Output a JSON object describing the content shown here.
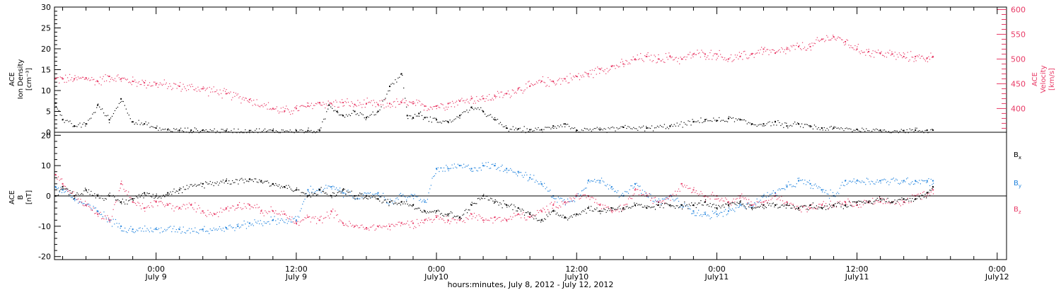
{
  "colors": {
    "black": "#000000",
    "pink": "#e83a66",
    "blue": "#1f82dd",
    "axis": "#000000"
  },
  "x_ticks": [
    {
      "time": "0:00",
      "date": "July 9",
      "hour": 24
    },
    {
      "time": "12:00",
      "date": "July 9",
      "hour": 36
    },
    {
      "time": "0:00",
      "date": "July10",
      "hour": 48
    },
    {
      "time": "12:00",
      "date": "July10",
      "hour": 60
    },
    {
      "time": "0:00",
      "date": "July11",
      "hour": 72
    },
    {
      "time": "12:00",
      "date": "July11",
      "hour": 84
    },
    {
      "time": "0:00",
      "date": "July12",
      "hour": 96
    }
  ],
  "x_caption": "hours:minutes, July  8, 2012 - July 12, 2012",
  "chart_data": [
    {
      "type": "scatter",
      "xlim": [
        15.3,
        96.8
      ],
      "ylabel_lines": [
        "ACE",
        "Ion Density",
        "[cm⁻³]"
      ],
      "ylim": [
        0,
        30
      ],
      "yticks": [
        0,
        5,
        10,
        15,
        20,
        25,
        30
      ],
      "y2label_lines": [
        "ACE",
        "Velocity",
        "[km/s]"
      ],
      "y2lim": [
        352,
        605
      ],
      "y2ticks": [
        400,
        450,
        500,
        550,
        600
      ],
      "series": [
        {
          "color": "black",
          "axis": "left",
          "x": [
            15.4,
            16,
            17,
            18,
            19,
            20,
            21,
            22,
            23,
            24,
            25,
            26,
            27,
            28,
            30,
            32,
            34,
            36,
            37,
            38,
            38.8,
            39.5,
            40,
            41,
            42,
            43,
            44,
            45,
            45.5,
            46,
            46.5,
            47,
            48,
            49,
            50,
            51,
            52,
            53,
            54,
            55,
            56,
            57,
            58,
            59,
            60,
            62,
            64,
            66,
            68,
            70,
            71,
            72,
            73,
            74,
            75,
            76,
            77,
            78,
            79,
            80,
            81,
            82,
            84,
            86,
            88,
            89,
            90,
            90.5
          ],
          "y": [
            7,
            3,
            1.5,
            2,
            6.5,
            3,
            8,
            2.5,
            2,
            1,
            0.6,
            0.5,
            0.5,
            0.5,
            0.4,
            0.4,
            0.4,
            0.4,
            0.4,
            0.4,
            6.5,
            5,
            4,
            5,
            3.5,
            5,
            11,
            14,
            4,
            3.5,
            4.5,
            3.5,
            3,
            2.5,
            4,
            6,
            5,
            3,
            1,
            0.8,
            0.6,
            0.6,
            1.5,
            2,
            0.5,
            0.6,
            1.2,
            1,
            1.5,
            2.5,
            3,
            2.8,
            3.3,
            3,
            2,
            2,
            2.5,
            1.5,
            2,
            1.5,
            1,
            1,
            0.7,
            0.5,
            0.4,
            0.5,
            0.5,
            0.5
          ]
        },
        {
          "color": "pink",
          "axis": "right",
          "x": [
            15.4,
            16,
            17,
            18,
            19,
            20,
            21,
            22,
            23,
            24,
            26,
            28,
            30,
            32,
            34,
            35,
            36,
            37,
            38,
            39,
            40,
            41,
            42,
            43,
            44,
            45,
            46,
            47,
            48,
            49,
            50,
            51,
            52,
            53,
            54,
            55,
            56,
            57,
            58,
            59,
            60,
            61,
            62,
            63,
            64,
            65,
            66,
            67,
            68,
            69,
            70,
            71,
            72,
            73,
            74,
            75,
            76,
            77,
            78,
            79,
            80,
            81,
            82,
            83,
            84,
            85,
            86,
            87,
            88,
            89,
            90,
            90.5
          ],
          "y": [
            460,
            460,
            460,
            462,
            455,
            465,
            460,
            455,
            452,
            450,
            445,
            440,
            430,
            418,
            400,
            395,
            400,
            405,
            412,
            410,
            412,
            408,
            410,
            408,
            410,
            412,
            410,
            405,
            405,
            410,
            415,
            420,
            420,
            425,
            430,
            440,
            445,
            455,
            455,
            460,
            465,
            470,
            480,
            485,
            490,
            500,
            505,
            500,
            505,
            500,
            510,
            510,
            510,
            500,
            505,
            510,
            520,
            512,
            520,
            525,
            525,
            540,
            545,
            535,
            520,
            515,
            512,
            510,
            505,
            505,
            502,
            505
          ]
        }
      ]
    },
    {
      "type": "scatter",
      "xlim": [
        15.3,
        96.8
      ],
      "ylabel_lines": [
        "ACE",
        "B",
        "[nT]"
      ],
      "ylim": [
        -21,
        21
      ],
      "yticks": [
        -20,
        -10,
        0,
        10,
        20
      ],
      "zero_line": true,
      "legend": {
        "placement": "right",
        "entries": [
          {
            "base": "B",
            "sub": "x",
            "color": "black"
          },
          {
            "base": "B",
            "sub": "y",
            "color": "blue"
          },
          {
            "base": "B",
            "sub": "z",
            "color": "pink"
          }
        ]
      },
      "series": [
        {
          "color": "black",
          "x": [
            15.4,
            16,
            17,
            18,
            19,
            20,
            21,
            22,
            23,
            24,
            25,
            26,
            28,
            30,
            32,
            33,
            34,
            35,
            36,
            37,
            38,
            39,
            40,
            41,
            42,
            43,
            44,
            45,
            46,
            47,
            48,
            49,
            50,
            51,
            52,
            53,
            54,
            55,
            56,
            57,
            58,
            59,
            60,
            61,
            62,
            63,
            64,
            65,
            66,
            67,
            68,
            69,
            70,
            71,
            72,
            73,
            74,
            75,
            76,
            77,
            78,
            79,
            80,
            81,
            82,
            83,
            84,
            85,
            86,
            87,
            88,
            89,
            90,
            90.5
          ],
          "y": [
            0,
            3,
            0,
            2,
            0,
            0,
            -2,
            -1,
            1,
            0,
            1,
            2,
            4,
            5,
            5.5,
            5,
            4,
            3,
            2,
            0,
            2,
            0,
            2,
            0,
            0,
            -1,
            -2,
            -2,
            -3,
            -5,
            -5,
            -6,
            -7,
            -3,
            0,
            -2,
            -3,
            -4,
            -6,
            -8,
            -5,
            -7,
            -6,
            -4,
            -5,
            -4,
            -4,
            -3,
            -4,
            -3,
            -3,
            -3,
            -3,
            -2,
            -4,
            -3,
            -2,
            -4,
            -3,
            -3,
            -3,
            -4,
            -3,
            -4,
            -3,
            -3,
            -2,
            -2,
            -1,
            -2,
            -1,
            -1,
            1,
            3
          ]
        },
        {
          "color": "blue",
          "x": [
            15.4,
            16,
            17,
            18,
            19,
            20,
            21,
            22,
            24,
            26,
            28,
            30,
            31,
            32,
            34,
            36,
            37,
            38,
            39,
            40,
            41,
            42,
            43,
            44,
            45,
            46,
            47,
            48,
            49,
            50,
            51,
            52,
            53,
            54,
            55,
            56,
            57,
            58,
            59,
            60,
            61,
            62,
            63,
            64,
            65,
            66,
            67,
            68,
            69,
            70,
            71,
            72,
            73,
            74,
            75,
            76,
            77,
            78,
            79,
            80,
            81,
            82,
            83,
            84,
            86,
            88,
            89,
            90,
            90.5
          ],
          "y": [
            3,
            2,
            -1,
            -3,
            -5,
            -8,
            -10,
            -11,
            -11,
            -11,
            -11,
            -10.5,
            -10,
            -9,
            -8,
            -8,
            2,
            2,
            3,
            1,
            0,
            0,
            1,
            -2,
            0,
            0,
            -2,
            9,
            9,
            10,
            9,
            10,
            10,
            9,
            8,
            6,
            4,
            0,
            -2,
            0,
            5,
            5,
            3,
            0,
            4,
            0,
            -2,
            0,
            -3,
            -5,
            -6,
            -6,
            -5,
            -3,
            -3,
            0,
            1,
            3,
            5,
            4,
            2,
            0,
            5,
            5,
            5,
            5,
            5,
            5,
            5
          ]
        },
        {
          "color": "pink",
          "x": [
            15.4,
            16,
            17,
            18,
            19,
            20,
            21,
            22,
            23,
            24,
            25,
            26,
            27,
            28,
            29,
            30,
            31,
            32,
            33,
            34,
            35,
            36,
            37,
            38,
            39,
            40,
            41,
            42,
            43,
            44,
            45,
            46,
            47,
            48,
            49,
            50,
            51,
            52,
            53,
            54,
            55,
            56,
            57,
            58,
            59,
            60,
            61,
            62,
            63,
            64,
            65,
            66,
            67,
            68,
            69,
            70,
            71,
            72,
            73,
            74,
            75,
            76,
            77,
            78,
            79,
            80,
            81,
            82,
            83,
            84,
            85,
            86,
            87,
            88,
            89,
            90,
            90.5
          ],
          "y": [
            7,
            4,
            0,
            -3,
            -6,
            -8,
            4,
            -2,
            -4,
            -2,
            -3,
            -4,
            -3,
            -5,
            -6,
            -4,
            -3,
            -3,
            -5,
            -5,
            -6,
            -9,
            -7,
            -8,
            -5,
            -9,
            -10,
            -10.5,
            -10,
            -10,
            -9,
            -9,
            -8,
            -7,
            -8,
            -8,
            -6,
            -8,
            -7,
            -8,
            -6,
            -7,
            -5,
            -3,
            -2,
            0,
            0,
            -3,
            -5,
            -4,
            2,
            0,
            -2,
            0,
            4,
            2,
            0,
            0,
            -2,
            0,
            -3,
            -2,
            0,
            -2,
            -4,
            -4,
            -3,
            -3,
            -2,
            -3,
            -2,
            -2,
            -2,
            -2,
            0,
            1,
            2
          ]
        }
      ]
    }
  ]
}
